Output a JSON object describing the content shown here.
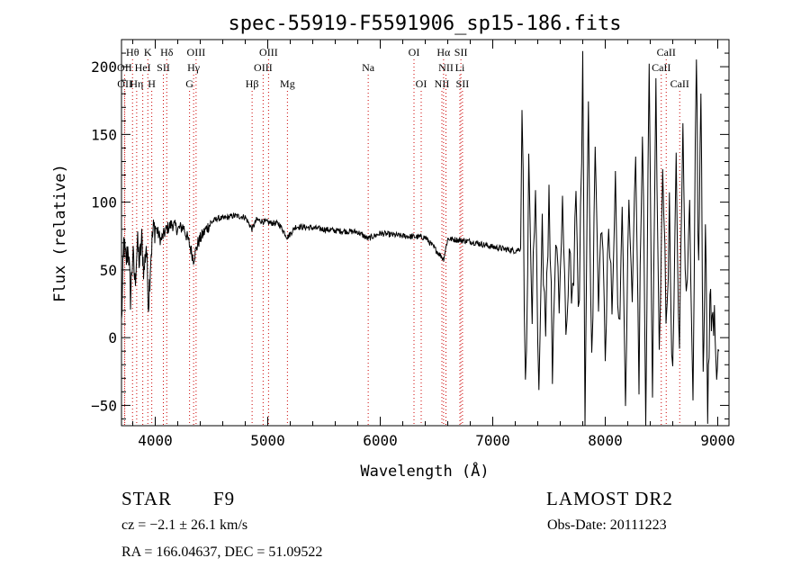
{
  "chart_data": {
    "type": "line",
    "title": "spec-55919-F5591906_sp15-186.fits",
    "xlabel": "Wavelength (Å)",
    "ylabel": "Flux (relative)",
    "xlim": [
      3700,
      9100
    ],
    "ylim": [
      -65,
      220
    ],
    "x_ticks": [
      4000,
      5000,
      6000,
      7000,
      8000,
      9000
    ],
    "y_ticks": [
      -50,
      0,
      50,
      100,
      150,
      200
    ],
    "line_color": "#000000",
    "marker_color": "#cc0000",
    "spectrum_anchors": [
      [
        3700,
        10
      ],
      [
        3720,
        70
      ],
      [
        3740,
        55
      ],
      [
        3760,
        68
      ],
      [
        3780,
        30
      ],
      [
        3800,
        62
      ],
      [
        3820,
        40
      ],
      [
        3840,
        70
      ],
      [
        3860,
        55
      ],
      [
        3880,
        72
      ],
      [
        3900,
        48
      ],
      [
        3920,
        70
      ],
      [
        3940,
        25
      ],
      [
        3960,
        60
      ],
      [
        3980,
        78
      ],
      [
        4000,
        82
      ],
      [
        4050,
        72
      ],
      [
        4100,
        80
      ],
      [
        4150,
        84
      ],
      [
        4200,
        80
      ],
      [
        4250,
        82
      ],
      [
        4300,
        70
      ],
      [
        4340,
        58
      ],
      [
        4380,
        70
      ],
      [
        4450,
        80
      ],
      [
        4500,
        85
      ],
      [
        4550,
        88
      ],
      [
        4600,
        88
      ],
      [
        4700,
        90
      ],
      [
        4800,
        89
      ],
      [
        4861,
        80
      ],
      [
        4900,
        87
      ],
      [
        5000,
        85
      ],
      [
        5100,
        84
      ],
      [
        5175,
        74
      ],
      [
        5250,
        82
      ],
      [
        5400,
        81
      ],
      [
        5600,
        79
      ],
      [
        5800,
        78
      ],
      [
        5890,
        73
      ],
      [
        6000,
        77
      ],
      [
        6200,
        75
      ],
      [
        6400,
        74
      ],
      [
        6563,
        58
      ],
      [
        6600,
        73
      ],
      [
        6800,
        71
      ],
      [
        7000,
        67
      ],
      [
        7200,
        64
      ],
      [
        7250,
        66
      ]
    ],
    "noisy_region": {
      "x_start": 7250,
      "x_end": 9010,
      "points": [
        [
          7260,
          185
        ],
        [
          7290,
          -45
        ],
        [
          7320,
          120
        ],
        [
          7350,
          20
        ],
        [
          7380,
          90
        ],
        [
          7410,
          -55
        ],
        [
          7440,
          80
        ],
        [
          7470,
          10
        ],
        [
          7500,
          110
        ],
        [
          7530,
          -20
        ],
        [
          7560,
          60
        ],
        [
          7590,
          25
        ],
        [
          7620,
          100
        ],
        [
          7650,
          -10
        ],
        [
          7680,
          70
        ],
        [
          7710,
          30
        ],
        [
          7740,
          90
        ],
        [
          7770,
          15
        ],
        [
          7800,
          210
        ],
        [
          7820,
          -60
        ],
        [
          7850,
          190
        ],
        [
          7880,
          -30
        ],
        [
          7910,
          140
        ],
        [
          7940,
          20
        ],
        [
          7970,
          95
        ],
        [
          8000,
          -15
        ],
        [
          8030,
          75
        ],
        [
          8060,
          35
        ],
        [
          8090,
          110
        ],
        [
          8120,
          10
        ],
        [
          8150,
          80
        ],
        [
          8180,
          -40
        ],
        [
          8210,
          95
        ],
        [
          8240,
          30
        ],
        [
          8270,
          130
        ],
        [
          8300,
          -25
        ],
        [
          8330,
          160
        ],
        [
          8360,
          -60
        ],
        [
          8390,
          200
        ],
        [
          8420,
          -45
        ],
        [
          8450,
          180
        ],
        [
          8480,
          -20
        ],
        [
          8510,
          140
        ],
        [
          8540,
          10
        ],
        [
          8570,
          90
        ],
        [
          8600,
          -35
        ],
        [
          8630,
          120
        ],
        [
          8660,
          -10
        ],
        [
          8690,
          150
        ],
        [
          8720,
          20
        ],
        [
          8750,
          95
        ],
        [
          8780,
          -30
        ],
        [
          8810,
          210
        ],
        [
          8830,
          40
        ],
        [
          8850,
          200
        ],
        [
          8870,
          -20
        ],
        [
          8890,
          80
        ],
        [
          8910,
          -55
        ],
        [
          8930,
          30
        ],
        [
          8950,
          5
        ],
        [
          8970,
          25
        ],
        [
          8990,
          -20
        ],
        [
          9010,
          -10
        ]
      ]
    },
    "lines_labels": [
      {
        "label": "Hθ",
        "wave": 3798,
        "row": 0
      },
      {
        "label": "K",
        "wave": 3934,
        "row": 0
      },
      {
        "label": "Hδ",
        "wave": 4102,
        "row": 0
      },
      {
        "label": "OIII",
        "wave": 4363,
        "row": 0
      },
      {
        "label": "OIII",
        "wave": 5007,
        "row": 0
      },
      {
        "label": "OI",
        "wave": 6300,
        "row": 0
      },
      {
        "label": "Hα",
        "wave": 6563,
        "row": 0
      },
      {
        "label": "SII",
        "wave": 6717,
        "row": 0
      },
      {
        "label": "CaII",
        "wave": 8542,
        "row": 0
      },
      {
        "label": "OII",
        "wave": 3727,
        "row": 1
      },
      {
        "label": "HeI",
        "wave": 3889,
        "row": 1
      },
      {
        "label": "SII",
        "wave": 4072,
        "row": 1
      },
      {
        "label": "Hγ",
        "wave": 4341,
        "row": 1
      },
      {
        "label": "OIII",
        "wave": 4959,
        "row": 1
      },
      {
        "label": "Na",
        "wave": 5893,
        "row": 1
      },
      {
        "label": "NII",
        "wave": 6584,
        "row": 1
      },
      {
        "label": "Li",
        "wave": 6708,
        "row": 1
      },
      {
        "label": "CaII",
        "wave": 8498,
        "row": 1
      },
      {
        "label": "OII",
        "wave": 3729,
        "row": 2
      },
      {
        "label": "Hη",
        "wave": 3835,
        "row": 2
      },
      {
        "label": "H",
        "wave": 3969,
        "row": 2
      },
      {
        "label": "G",
        "wave": 4305,
        "row": 2
      },
      {
        "label": "Hβ",
        "wave": 4861,
        "row": 2
      },
      {
        "label": "Mg",
        "wave": 5175,
        "row": 2
      },
      {
        "label": "OI",
        "wave": 6364,
        "row": 2
      },
      {
        "label": "NII",
        "wave": 6548,
        "row": 2
      },
      {
        "label": "SII",
        "wave": 6731,
        "row": 2
      },
      {
        "label": "CaII",
        "wave": 8662,
        "row": 2
      }
    ]
  },
  "info": {
    "object_class": "STAR",
    "subclass": "F9",
    "survey": "LAMOST DR2",
    "cz": "cz = −2.1 ± 26.1 km/s",
    "obs_date": "Obs-Date: 20111223",
    "coords": "RA = 166.04637, DEC =  51.09522"
  }
}
